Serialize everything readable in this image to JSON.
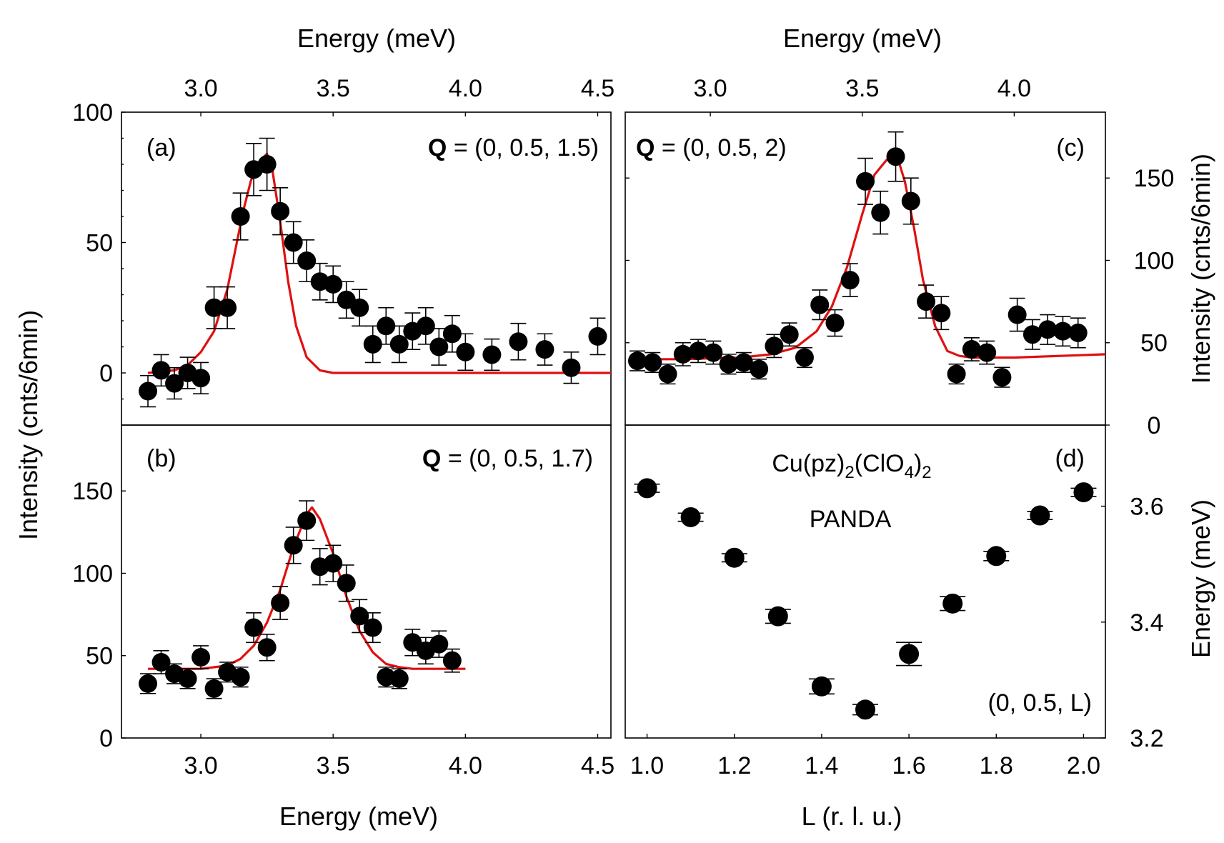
{
  "figure": {
    "axis_labels": {
      "top_energy_left": "Energy (meV)",
      "top_energy_right": "Energy (meV)",
      "bottom_energy": "Energy (meV)",
      "bottom_L": "L (r. l. u.)",
      "left_intensity": "Intensity (cnts/6min)",
      "right_intensity": "Intensity (cnts/6min)",
      "right_energy": "Energy (meV)"
    }
  },
  "chart_data": [
    {
      "id": "a",
      "type": "scatter",
      "panel_label": "(a)",
      "q_bold": "Q",
      "q_text": " = (0, 0.5, 1.5)",
      "xlabel": "Energy (meV)",
      "ylabel": "Intensity (cnts/6min)",
      "xlim": [
        2.7,
        4.55
      ],
      "ylim": [
        -20,
        100
      ],
      "yticks": [
        "0",
        "50",
        "100"
      ],
      "xticks_top": [
        "3.0",
        "3.5",
        "4.0",
        "4.5"
      ],
      "x": [
        2.8,
        2.85,
        2.9,
        2.95,
        3.0,
        3.05,
        3.1,
        3.15,
        3.2,
        3.25,
        3.3,
        3.35,
        3.4,
        3.45,
        3.5,
        3.55,
        3.6,
        3.65,
        3.7,
        3.75,
        3.8,
        3.85,
        3.9,
        3.95,
        4.0,
        4.1,
        4.2,
        4.3,
        4.4,
        4.5
      ],
      "y": [
        -7,
        1,
        -4,
        0,
        -2,
        25,
        25,
        60,
        78,
        80,
        62,
        50,
        43,
        35,
        34,
        28,
        25,
        11,
        18,
        11,
        16,
        18,
        10,
        15,
        8,
        7,
        12,
        9,
        2,
        14
      ],
      "yerr": [
        6,
        6,
        6,
        6,
        6,
        8,
        8,
        9,
        10,
        10,
        9,
        8,
        8,
        7,
        7,
        7,
        7,
        7,
        7,
        7,
        7,
        7,
        7,
        7,
        7,
        6,
        7,
        6,
        6,
        7
      ],
      "fit": {
        "x": [
          2.8,
          2.9,
          2.95,
          3.0,
          3.05,
          3.1,
          3.13,
          3.16,
          3.19,
          3.22,
          3.24,
          3.25,
          3.27,
          3.3,
          3.33,
          3.36,
          3.4,
          3.45,
          3.5,
          3.55,
          3.6,
          4.0,
          4.55
        ],
        "y": [
          0,
          1,
          3,
          8,
          16,
          32,
          47,
          62,
          74,
          79,
          83,
          84,
          78,
          58,
          35,
          18,
          6,
          1,
          0,
          0,
          0,
          0,
          0
        ]
      }
    },
    {
      "id": "b",
      "type": "scatter",
      "panel_label": "(b)",
      "q_bold": "Q",
      "q_text": " = (0, 0.5, 1.7)",
      "xlabel": "Energy (meV)",
      "ylabel": "Intensity (cnts/6min)",
      "xlim": [
        2.7,
        4.55
      ],
      "ylim": [
        0,
        190
      ],
      "yticks": [
        "0",
        "50",
        "100",
        "150"
      ],
      "xticks_bottom": [
        "3.0",
        "3.5",
        "4.0",
        "4.5"
      ],
      "x": [
        2.8,
        2.85,
        2.9,
        2.95,
        3.0,
        3.05,
        3.1,
        3.15,
        3.2,
        3.25,
        3.3,
        3.35,
        3.4,
        3.45,
        3.5,
        3.55,
        3.6,
        3.65,
        3.7,
        3.75,
        3.8,
        3.85,
        3.9,
        3.95
      ],
      "y": [
        33,
        46,
        39,
        36,
        49,
        30,
        40,
        37,
        67,
        55,
        82,
        117,
        132,
        104,
        106,
        94,
        74,
        67,
        37,
        36,
        58,
        53,
        57,
        47
      ],
      "yerr": [
        6,
        7,
        6,
        6,
        7,
        6,
        6,
        6,
        9,
        8,
        10,
        11,
        12,
        11,
        11,
        11,
        10,
        9,
        6,
        6,
        8,
        8,
        8,
        7
      ],
      "fit": {
        "x": [
          2.8,
          2.9,
          3.0,
          3.1,
          3.15,
          3.2,
          3.25,
          3.3,
          3.35,
          3.4,
          3.42,
          3.45,
          3.5,
          3.55,
          3.6,
          3.65,
          3.7,
          3.75,
          3.8,
          4.0
        ],
        "y": [
          42,
          42,
          42,
          44,
          48,
          56,
          70,
          90,
          116,
          136,
          140,
          133,
          112,
          86,
          65,
          52,
          45,
          43,
          42,
          42
        ]
      }
    },
    {
      "id": "c",
      "type": "scatter",
      "panel_label": "(c)",
      "q_bold": "Q",
      "q_text": " = (0, 0.5, 2)",
      "xlabel": "Energy (meV)",
      "ylabel": "Intensity (cnts/6min)",
      "xlim": [
        2.72,
        4.3
      ],
      "ylim": [
        0,
        190
      ],
      "yticks": [
        "0",
        "50",
        "100",
        "150"
      ],
      "xticks_top": [
        "3.0",
        "3.5",
        "4.0"
      ],
      "x": [
        2.76,
        2.81,
        2.86,
        2.91,
        2.96,
        3.01,
        3.06,
        3.11,
        3.16,
        3.21,
        3.26,
        3.31,
        3.36,
        3.41,
        3.46,
        3.51,
        3.56,
        3.61,
        3.66,
        3.71,
        3.76,
        3.81,
        3.86,
        3.91,
        3.96,
        4.01,
        4.06,
        4.11,
        4.16,
        4.21
      ],
      "y": [
        39,
        38,
        31,
        43,
        45,
        44,
        37,
        38,
        34,
        48,
        55,
        41,
        73,
        62,
        88,
        148,
        129,
        163,
        136,
        75,
        68,
        31,
        46,
        44,
        29,
        67,
        55,
        58,
        57,
        56
      ],
      "yerr": [
        6,
        6,
        6,
        7,
        7,
        7,
        6,
        6,
        6,
        7,
        7,
        6,
        9,
        8,
        10,
        14,
        13,
        15,
        14,
        10,
        10,
        6,
        7,
        7,
        6,
        10,
        9,
        9,
        9,
        9
      ],
      "fit": {
        "x": [
          2.76,
          2.9,
          3.1,
          3.2,
          3.28,
          3.35,
          3.4,
          3.45,
          3.5,
          3.54,
          3.58,
          3.6,
          3.62,
          3.64,
          3.67,
          3.7,
          3.74,
          3.78,
          3.82,
          3.86,
          3.9,
          4.0,
          4.3
        ],
        "y": [
          40,
          40,
          41,
          43,
          47,
          57,
          72,
          96,
          128,
          152,
          161,
          162,
          160,
          148,
          120,
          88,
          60,
          45,
          42,
          41,
          41,
          41,
          43
        ]
      }
    },
    {
      "id": "d",
      "type": "scatter",
      "panel_label": "(d)",
      "compound_main": "Cu(pz)",
      "compound_sub1": "2",
      "compound_mid": "(ClO",
      "compound_sub2": "4",
      "compound_close": ")",
      "compound_sub3": "2",
      "instrument": "PANDA",
      "path_text": "(0, 0.5, L)",
      "xlabel": "L (r. l. u.)",
      "ylabel": "Energy (meV)",
      "xlim": [
        0.95,
        2.05
      ],
      "ylim": [
        3.2,
        3.74
      ],
      "xticks_bottom": [
        "1.0",
        "1.2",
        "1.4",
        "1.6",
        "1.8",
        "2.0"
      ],
      "yticks": [
        "3.2",
        "3.4",
        "3.6"
      ],
      "x": [
        1.0,
        1.1,
        1.2,
        1.3,
        1.4,
        1.5,
        1.6,
        1.7,
        1.8,
        1.9,
        2.0
      ],
      "y": [
        3.631,
        3.581,
        3.511,
        3.41,
        3.289,
        3.249,
        3.345,
        3.432,
        3.514,
        3.584,
        3.624
      ],
      "yerr": [
        0.007,
        0.007,
        0.007,
        0.012,
        0.013,
        0.009,
        0.02,
        0.012,
        0.008,
        0.007,
        0.007
      ]
    }
  ]
}
